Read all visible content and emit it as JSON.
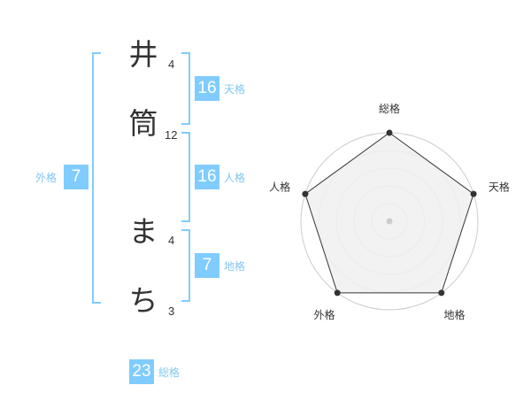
{
  "name": {
    "chars": [
      {
        "char": "井",
        "strokes": "4"
      },
      {
        "char": "筒",
        "strokes": "12"
      },
      {
        "char": "ま",
        "strokes": "4"
      },
      {
        "char": "ち",
        "strokes": "3"
      }
    ]
  },
  "kaku": {
    "tenkaku": {
      "label": "天格",
      "value": "16"
    },
    "jinkaku": {
      "label": "人格",
      "value": "16"
    },
    "chikaku": {
      "label": "地格",
      "value": "7"
    },
    "gaikaku": {
      "label": "外格",
      "value": "7"
    },
    "soukaku": {
      "label": "総格",
      "value": "23"
    }
  },
  "colors": {
    "accent": "#80ccff",
    "label": "#80c8f0"
  },
  "chart_data": {
    "type": "radar",
    "axes": [
      "総格",
      "天格",
      "地格",
      "外格",
      "人格"
    ],
    "values": [
      5,
      5,
      5,
      5,
      5
    ],
    "range": [
      0,
      5
    ],
    "rings": 5
  }
}
